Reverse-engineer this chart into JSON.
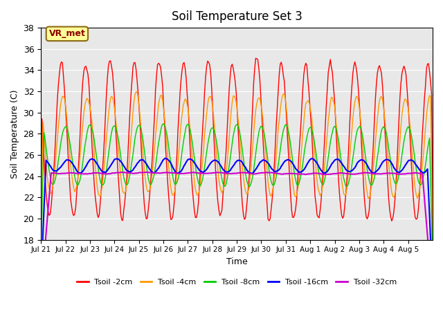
{
  "title": "Soil Temperature Set 3",
  "xlabel": "Time",
  "ylabel": "Soil Temperature (C)",
  "ylim": [
    18,
    38
  ],
  "yticks": [
    18,
    20,
    22,
    24,
    26,
    28,
    30,
    32,
    34,
    36,
    38
  ],
  "x_labels": [
    "Jul 21",
    "Jul 22",
    "Jul 23",
    "Jul 24",
    "Jul 25",
    "Jul 26",
    "Jul 27",
    "Jul 28",
    "Jul 29",
    "Jul 30",
    "Jul 31",
    "Aug 1",
    "Aug 2",
    "Aug 3",
    "Aug 4",
    "Aug 5"
  ],
  "colors": {
    "Tsoil -2cm": "#ff0000",
    "Tsoil -4cm": "#ff9900",
    "Tsoil -8cm": "#00cc00",
    "Tsoil -16cm": "#0000ff",
    "Tsoil -32cm": "#cc00cc"
  },
  "background_color": "#e8e8e8",
  "annotation_text": "VR_met",
  "annotation_bg": "#ffff99",
  "annotation_border": "#8B6914",
  "n_days": 16
}
